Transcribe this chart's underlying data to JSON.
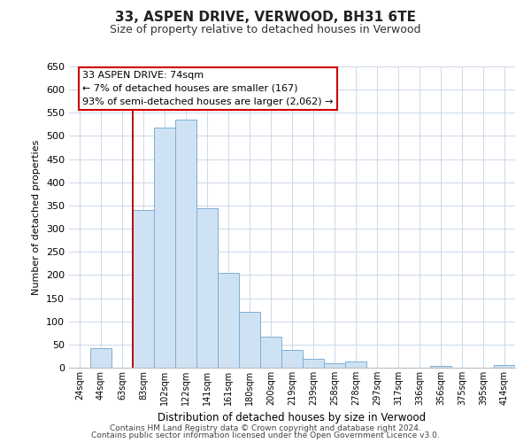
{
  "title": "33, ASPEN DRIVE, VERWOOD, BH31 6TE",
  "subtitle": "Size of property relative to detached houses in Verwood",
  "xlabel": "Distribution of detached houses by size in Verwood",
  "ylabel": "Number of detached properties",
  "bar_labels": [
    "24sqm",
    "44sqm",
    "63sqm",
    "83sqm",
    "102sqm",
    "122sqm",
    "141sqm",
    "161sqm",
    "180sqm",
    "200sqm",
    "219sqm",
    "239sqm",
    "258sqm",
    "278sqm",
    "297sqm",
    "317sqm",
    "336sqm",
    "356sqm",
    "375sqm",
    "395sqm",
    "414sqm"
  ],
  "bar_values": [
    0,
    42,
    0,
    340,
    518,
    535,
    345,
    205,
    120,
    67,
    38,
    20,
    10,
    14,
    0,
    0,
    0,
    3,
    0,
    0,
    5
  ],
  "bar_color": "#cfe2f3",
  "bar_edge_color": "#7bafd4",
  "highlight_line_color": "#aa0000",
  "ylim": [
    0,
    650
  ],
  "yticks": [
    0,
    50,
    100,
    150,
    200,
    250,
    300,
    350,
    400,
    450,
    500,
    550,
    600,
    650
  ],
  "annotation_title": "33 ASPEN DRIVE: 74sqm",
  "annotation_line1": "← 7% of detached houses are smaller (167)",
  "annotation_line2": "93% of semi-detached houses are larger (2,062) →",
  "annotation_box_color": "#ffffff",
  "annotation_box_edge": "#cc0000",
  "footer_line1": "Contains HM Land Registry data © Crown copyright and database right 2024.",
  "footer_line2": "Contains public sector information licensed under the Open Government Licence v3.0.",
  "bg_color": "#ffffff",
  "grid_color": "#ccd8ea"
}
